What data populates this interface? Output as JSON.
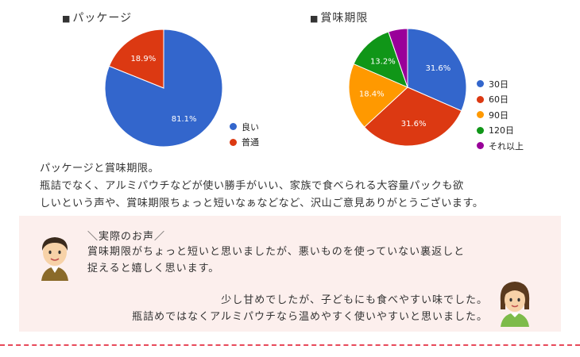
{
  "charts": {
    "package": {
      "title": "パッケージ",
      "marker": "■",
      "legend": [
        {
          "label": "良い",
          "color": "#3366cc"
        },
        {
          "label": "普通",
          "color": "#dc3912"
        }
      ]
    },
    "expiry": {
      "title": "賞味期限",
      "marker": "■",
      "legend": [
        {
          "label": "30日",
          "color": "#3366cc"
        },
        {
          "label": "60日",
          "color": "#dc3912"
        },
        {
          "label": "90日",
          "color": "#ff9900"
        },
        {
          "label": "120日",
          "color": "#109618"
        },
        {
          "label": "それ以上",
          "color": "#990099"
        }
      ]
    }
  },
  "chart_data": [
    {
      "type": "pie",
      "title": "パッケージ",
      "categories": [
        "良い",
        "普通"
      ],
      "values": [
        81.1,
        18.9
      ],
      "labels": [
        "81.1%",
        "18.9%"
      ],
      "colors": [
        "#3366cc",
        "#dc3912"
      ],
      "legend_position": "right-bottom"
    },
    {
      "type": "pie",
      "title": "賞味期限",
      "categories": [
        "30日",
        "60日",
        "90日",
        "120日",
        "それ以上"
      ],
      "values": [
        31.6,
        31.6,
        18.4,
        13.2,
        5.3
      ],
      "labels": [
        "31.6%",
        "31.6%",
        "18.4%",
        "13.2%",
        ""
      ],
      "colors": [
        "#3366cc",
        "#dc3912",
        "#ff9900",
        "#109618",
        "#990099"
      ],
      "legend_position": "right"
    }
  ],
  "summary": {
    "line1": "パッケージと賞味期限。",
    "line2": "瓶詰でなく、アルミパウチなどが使い勝手がいい、家族で食べられる大容量パックも欲",
    "line3": "しいという声や、賞味期限ちょっと短いなぁなどなど、沢山ご意見ありがとうございます。"
  },
  "voices": {
    "heading": "＼実際のお声／",
    "voice1_line1": "賞味期限がちょっと短いと思いましたが、悪いものを使っていない裏返しと",
    "voice1_line2": "捉えると嬉しく思います。",
    "voice2_line1": "少し甘めでしたが、子どもにも食べやすい味でした。",
    "voice2_line2": "瓶詰めではなくアルミパウチなら温めやすく使いやすいと思いました。"
  },
  "colors": {
    "box_bg": "#fcefed",
    "divider": "#e8495a"
  }
}
